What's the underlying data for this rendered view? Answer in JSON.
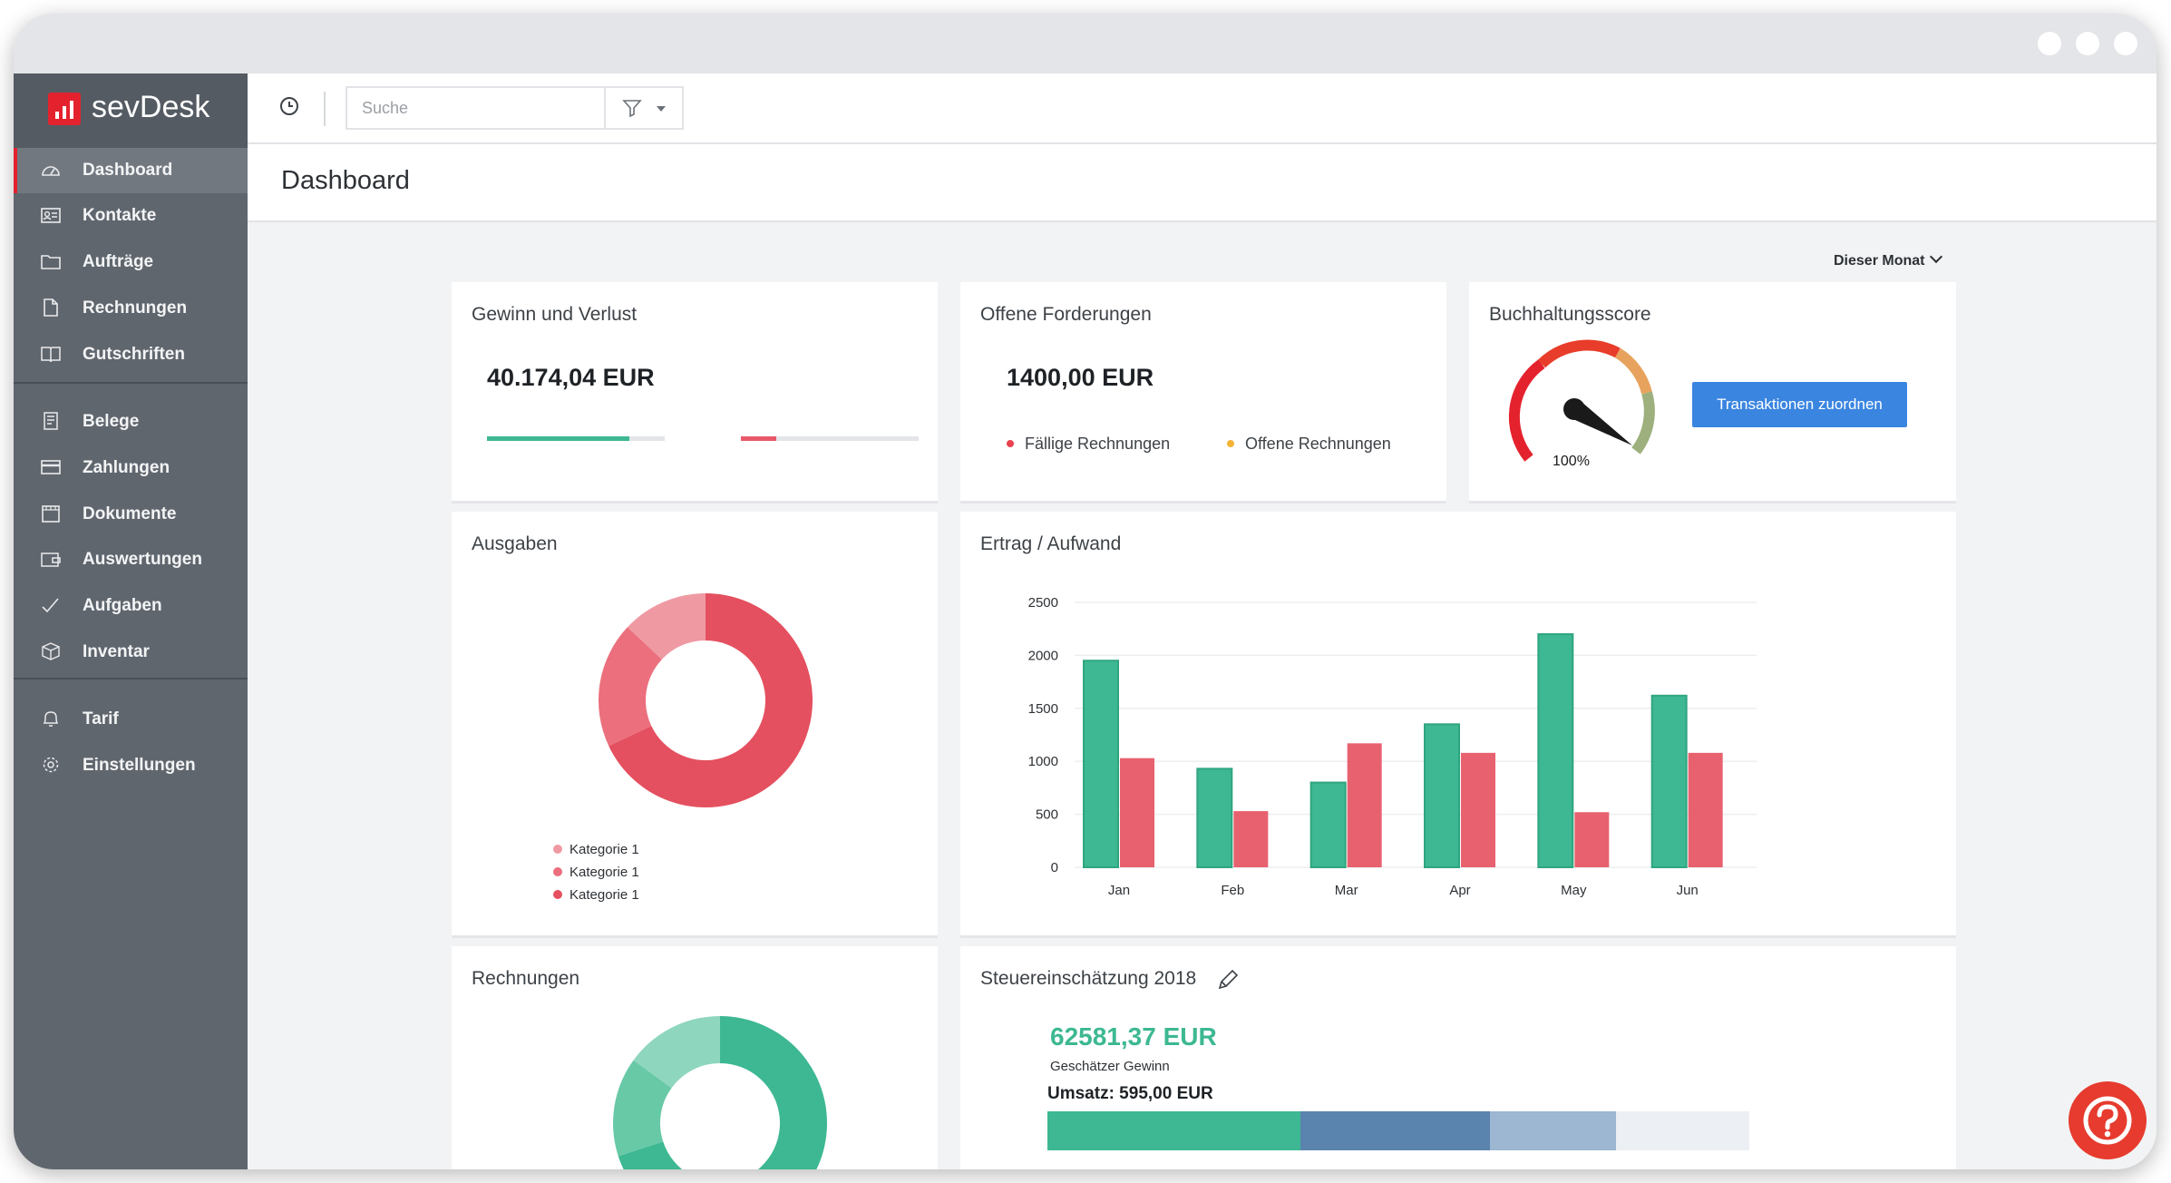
{
  "app": {
    "brand": "sevDesk"
  },
  "sidebar": {
    "items": [
      {
        "label": "Dashboard",
        "icon": "dashboard-gauge-icon",
        "active": true
      },
      {
        "label": "Kontakte",
        "icon": "contact-card-icon"
      },
      {
        "label": "Aufträge",
        "icon": "folder-icon"
      },
      {
        "label": "Rechnungen",
        "icon": "document-icon"
      },
      {
        "label": "Gutschriften",
        "icon": "book-icon"
      },
      {
        "label": "Belege",
        "icon": "receipt-icon"
      },
      {
        "label": "Zahlungen",
        "icon": "credit-card-icon"
      },
      {
        "label": "Dokumente",
        "icon": "file-box-icon"
      },
      {
        "label": "Auswertungen",
        "icon": "wallet-icon"
      },
      {
        "label": "Aufgaben",
        "icon": "checkmark-icon"
      },
      {
        "label": "Inventar",
        "icon": "box-icon"
      },
      {
        "label": "Tarif",
        "icon": "bell-icon"
      },
      {
        "label": "Einstellungen",
        "icon": "gear-icon"
      }
    ]
  },
  "topbar": {
    "search_placeholder": "Suche",
    "history_icon": "clock-icon",
    "filter_icon": "filter-icon"
  },
  "page": {
    "title": "Dashboard",
    "period": "Dieser Monat"
  },
  "cards": {
    "gewinn": {
      "title": "Gewinn und Verlust",
      "amount": "40.174,04 EUR",
      "income_ratio": 0.8,
      "expense_ratio": 0.2,
      "income_color": "#3db892",
      "expense_color": "#e8596b"
    },
    "forderungen": {
      "title": "Offene Forderungen",
      "amount": "1400,00 EUR",
      "legend": [
        {
          "label": "Fällige Rechnungen",
          "color": "#e8414f"
        },
        {
          "label": "Offene Rechnungen",
          "color": "#f5b335"
        }
      ]
    },
    "score": {
      "title": "Buchhaltungsscore",
      "value_label": "100%",
      "button": "Transaktionen zuordnen"
    },
    "ausgaben": {
      "title": "Ausgaben",
      "legend": [
        {
          "label": "Kategorie 1",
          "color": "#ef9aa3"
        },
        {
          "label": "Kategorie 1",
          "color": "#eb6f7d"
        },
        {
          "label": "Kategorie 1",
          "color": "#e4505f"
        }
      ]
    },
    "ertrag": {
      "title": "Ertrag / Aufwand"
    },
    "rechnungen": {
      "title": "Rechnungen"
    },
    "steuer": {
      "title": "Steuereinschätzung 2018",
      "amount": "62581,37 EUR",
      "subtitle": "Geschätzer Gewinn",
      "umsatz": "Umsatz: 595,00 EUR",
      "segments": [
        {
          "fraction": 0.36,
          "color": "#3db892"
        },
        {
          "fraction": 0.27,
          "color": "#5a83ad"
        },
        {
          "fraction": 0.18,
          "color": "#9db6d1"
        }
      ]
    }
  },
  "chart_data": [
    {
      "type": "bar",
      "categories": [
        "Jan",
        "Feb",
        "Mar",
        "Apr",
        "May",
        "Jun"
      ],
      "series": [
        {
          "values": [
            1950,
            930,
            800,
            1350,
            2200,
            1620
          ],
          "color": "#3db892"
        },
        {
          "values": [
            1030,
            530,
            1170,
            1080,
            520,
            1080
          ],
          "color": "#e8616f"
        }
      ],
      "yticks": [
        0,
        500,
        1000,
        1500,
        2000,
        2500
      ],
      "ylim": [
        0,
        2500
      ]
    },
    {
      "type": "pie",
      "labels": [
        "Kategorie 1",
        "Kategorie 1",
        "Kategorie 1"
      ],
      "values": [
        13,
        19,
        68
      ],
      "colors": [
        "#ef9aa3",
        "#eb6f7d",
        "#e4505f"
      ]
    },
    {
      "type": "pie",
      "values": [
        15,
        15,
        70
      ],
      "colors": [
        "#8fd6be",
        "#68c9a7",
        "#3db892"
      ]
    }
  ]
}
